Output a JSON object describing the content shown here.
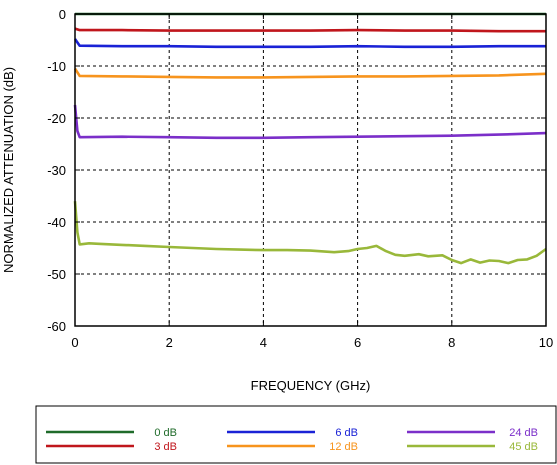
{
  "chart_data": {
    "type": "line",
    "title": "",
    "xlabel": "FREQUENCY (GHz)",
    "ylabel": "NORMALIZED ATTENUATION (dB)",
    "xlim": [
      0,
      10
    ],
    "ylim": [
      -60,
      0
    ],
    "x_ticks": [
      "0",
      "2",
      "4",
      "6",
      "8",
      "10"
    ],
    "y_ticks": [
      "0",
      "-10",
      "-20",
      "-30",
      "-40",
      "-50",
      "-60"
    ],
    "grid": "dotted",
    "legend_position": "bottom",
    "series": [
      {
        "name": "0 dB",
        "color": "#1f6b2a",
        "points": [
          [
            0,
            0
          ],
          [
            2,
            0
          ],
          [
            4,
            0
          ],
          [
            6,
            0
          ],
          [
            8,
            0
          ],
          [
            10,
            0
          ]
        ]
      },
      {
        "name": "3 dB",
        "color": "#c0161c",
        "points": [
          [
            0,
            -2.8
          ],
          [
            0.1,
            -3.1
          ],
          [
            1,
            -3.1
          ],
          [
            2,
            -3.2
          ],
          [
            3,
            -3.2
          ],
          [
            4,
            -3.2
          ],
          [
            5,
            -3.2
          ],
          [
            6,
            -3.1
          ],
          [
            7,
            -3.2
          ],
          [
            8,
            -3.2
          ],
          [
            9,
            -3.3
          ],
          [
            10,
            -3.3
          ]
        ]
      },
      {
        "name": "6 dB",
        "color": "#1a22d6",
        "points": [
          [
            0,
            -4.8
          ],
          [
            0.1,
            -6.1
          ],
          [
            1,
            -6.2
          ],
          [
            2,
            -6.2
          ],
          [
            3,
            -6.3
          ],
          [
            4,
            -6.3
          ],
          [
            5,
            -6.3
          ],
          [
            6,
            -6.2
          ],
          [
            7,
            -6.3
          ],
          [
            8,
            -6.3
          ],
          [
            9,
            -6.2
          ],
          [
            10,
            -6.2
          ]
        ]
      },
      {
        "name": "12 dB",
        "color": "#f7941d",
        "points": [
          [
            0,
            -10.5
          ],
          [
            0.1,
            -11.9
          ],
          [
            1,
            -12.0
          ],
          [
            2,
            -12.1
          ],
          [
            3,
            -12.2
          ],
          [
            4,
            -12.2
          ],
          [
            5,
            -12.1
          ],
          [
            6,
            -12.0
          ],
          [
            7,
            -12.0
          ],
          [
            8,
            -11.9
          ],
          [
            9,
            -11.8
          ],
          [
            10,
            -11.5
          ]
        ]
      },
      {
        "name": "24 dB",
        "color": "#7b2fc9",
        "points": [
          [
            0,
            -17.5
          ],
          [
            0.05,
            -22.5
          ],
          [
            0.1,
            -23.7
          ],
          [
            1,
            -23.6
          ],
          [
            2,
            -23.7
          ],
          [
            3,
            -23.8
          ],
          [
            4,
            -23.8
          ],
          [
            5,
            -23.7
          ],
          [
            6,
            -23.6
          ],
          [
            7,
            -23.5
          ],
          [
            8,
            -23.4
          ],
          [
            9,
            -23.2
          ],
          [
            10,
            -22.9
          ]
        ]
      },
      {
        "name": "45 dB",
        "color": "#99b83a",
        "points": [
          [
            0,
            -36
          ],
          [
            0.05,
            -42
          ],
          [
            0.1,
            -44.3
          ],
          [
            0.3,
            -44.1
          ],
          [
            0.5,
            -44.2
          ],
          [
            1,
            -44.4
          ],
          [
            1.5,
            -44.6
          ],
          [
            2,
            -44.8
          ],
          [
            2.5,
            -45.0
          ],
          [
            3,
            -45.2
          ],
          [
            3.5,
            -45.3
          ],
          [
            4,
            -45.4
          ],
          [
            4.5,
            -45.4
          ],
          [
            5,
            -45.5
          ],
          [
            5.5,
            -45.8
          ],
          [
            5.8,
            -45.6
          ],
          [
            6,
            -45.2
          ],
          [
            6.2,
            -45.0
          ],
          [
            6.4,
            -44.6
          ],
          [
            6.6,
            -45.6
          ],
          [
            6.8,
            -46.3
          ],
          [
            7,
            -46.5
          ],
          [
            7.3,
            -46.2
          ],
          [
            7.5,
            -46.6
          ],
          [
            7.8,
            -46.4
          ],
          [
            8,
            -47.3
          ],
          [
            8.2,
            -47.9
          ],
          [
            8.4,
            -47.2
          ],
          [
            8.6,
            -47.8
          ],
          [
            8.8,
            -47.4
          ],
          [
            9,
            -47.5
          ],
          [
            9.2,
            -47.9
          ],
          [
            9.4,
            -47.3
          ],
          [
            9.6,
            -47.2
          ],
          [
            9.8,
            -46.5
          ],
          [
            10,
            -45.2
          ]
        ]
      }
    ]
  }
}
